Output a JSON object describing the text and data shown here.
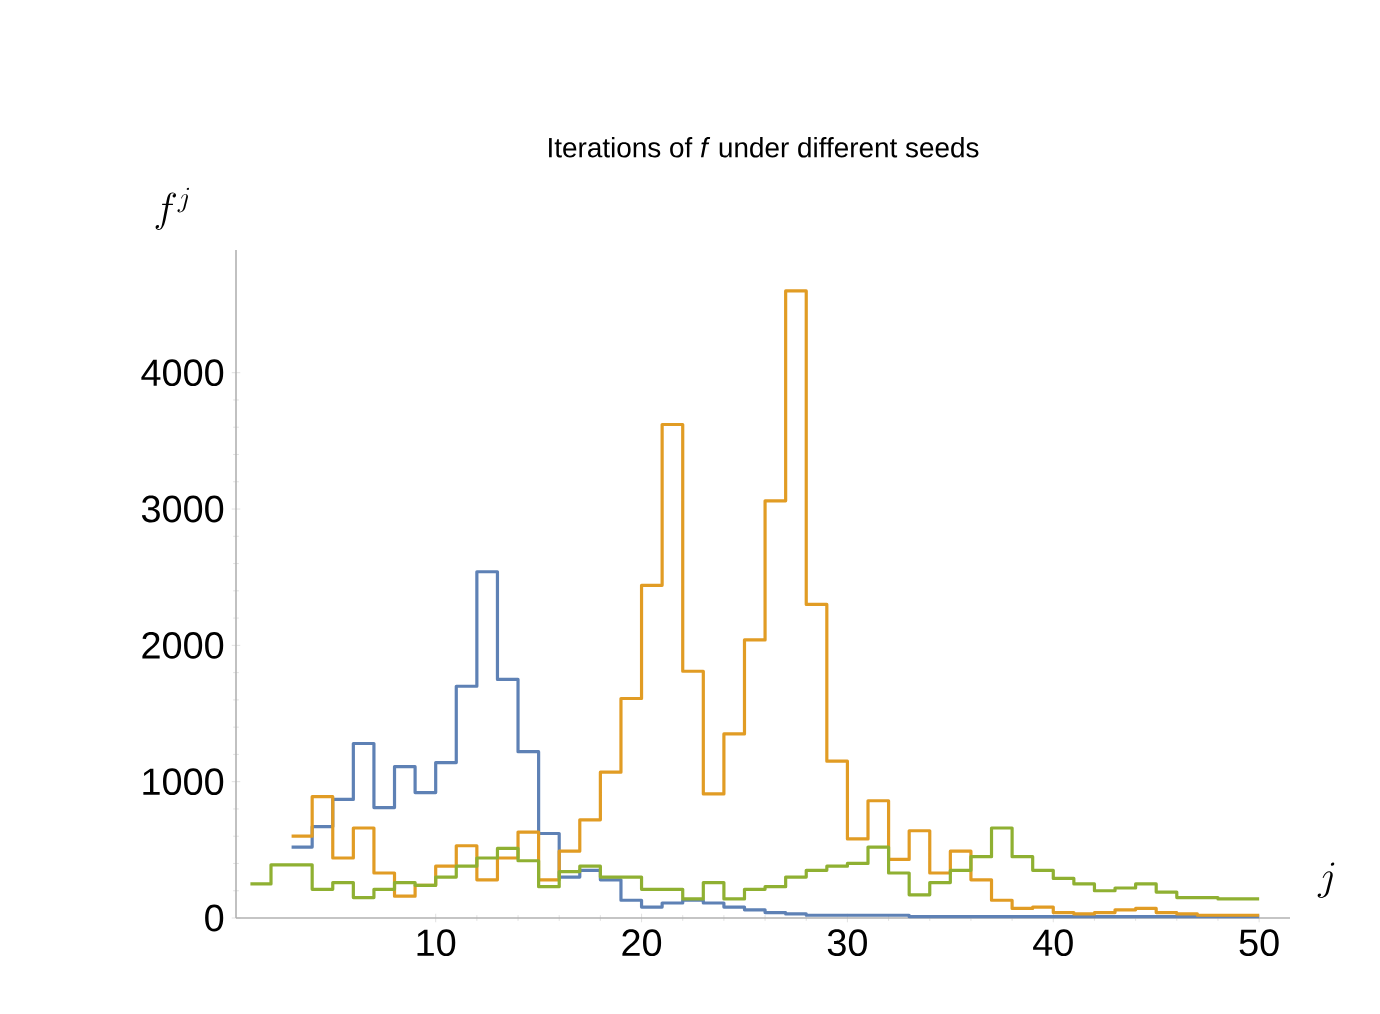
{
  "chart_data": {
    "type": "step",
    "title": "Iterations of *f* under different seeds",
    "xlabel": "j",
    "ylabel": "f^{j}",
    "xlim": [
      0.3,
      51.5
    ],
    "ylim": [
      0,
      4900
    ],
    "xticks": [
      10,
      20,
      30,
      40,
      50
    ],
    "yticks": [
      0,
      1000,
      2000,
      3000,
      4000
    ],
    "series": [
      {
        "color": "#5e81b5",
        "x": [
          3,
          4,
          5,
          6,
          7,
          8,
          9,
          10,
          11,
          12,
          13,
          14,
          15,
          16,
          17,
          18,
          19,
          20,
          21,
          22,
          23,
          24,
          25,
          26,
          27,
          28,
          29,
          30,
          31,
          32,
          33,
          34,
          35,
          36,
          37,
          38,
          39,
          40,
          41,
          42,
          43,
          44,
          45,
          46,
          47,
          48,
          49,
          50
        ],
        "values": [
          520,
          670,
          870,
          1280,
          810,
          1110,
          920,
          1140,
          1700,
          2540,
          1750,
          1220,
          620,
          300,
          350,
          280,
          130,
          80,
          110,
          130,
          110,
          80,
          60,
          40,
          30,
          20,
          20,
          20,
          20,
          20,
          10,
          10,
          10,
          10,
          10,
          10,
          10,
          10,
          10,
          10,
          10,
          10,
          10,
          10,
          10,
          10,
          10,
          10
        ]
      },
      {
        "color": "#e19c24",
        "x": [
          3,
          4,
          5,
          6,
          7,
          8,
          9,
          10,
          11,
          12,
          13,
          14,
          15,
          16,
          17,
          18,
          19,
          20,
          21,
          22,
          23,
          24,
          25,
          26,
          27,
          28,
          29,
          30,
          31,
          32,
          33,
          34,
          35,
          36,
          37,
          38,
          39,
          40,
          41,
          42,
          43,
          44,
          45,
          46,
          47,
          48,
          49,
          50
        ],
        "values": [
          600,
          890,
          440,
          660,
          330,
          160,
          240,
          380,
          530,
          280,
          440,
          630,
          280,
          490,
          720,
          1070,
          1610,
          2440,
          3620,
          1810,
          910,
          1350,
          2040,
          3060,
          4600,
          2300,
          1150,
          580,
          860,
          430,
          640,
          330,
          490,
          280,
          130,
          70,
          80,
          40,
          30,
          40,
          60,
          70,
          40,
          30,
          20,
          20,
          20,
          20
        ]
      },
      {
        "color": "#8fb032",
        "x": [
          1,
          2,
          3,
          4,
          5,
          6,
          7,
          8,
          9,
          10,
          11,
          12,
          13,
          14,
          15,
          16,
          17,
          18,
          19,
          20,
          21,
          22,
          23,
          24,
          25,
          26,
          27,
          28,
          29,
          30,
          31,
          32,
          33,
          34,
          35,
          36,
          37,
          38,
          39,
          40,
          41,
          42,
          43,
          44,
          45,
          46,
          47,
          48,
          49,
          50
        ],
        "values": [
          250,
          390,
          390,
          210,
          260,
          150,
          210,
          260,
          240,
          300,
          380,
          440,
          510,
          420,
          230,
          340,
          380,
          300,
          300,
          210,
          210,
          140,
          260,
          140,
          210,
          230,
          300,
          350,
          380,
          400,
          520,
          330,
          170,
          260,
          350,
          450,
          660,
          450,
          350,
          290,
          250,
          200,
          220,
          250,
          190,
          150,
          150,
          140,
          140,
          140
        ]
      }
    ]
  }
}
